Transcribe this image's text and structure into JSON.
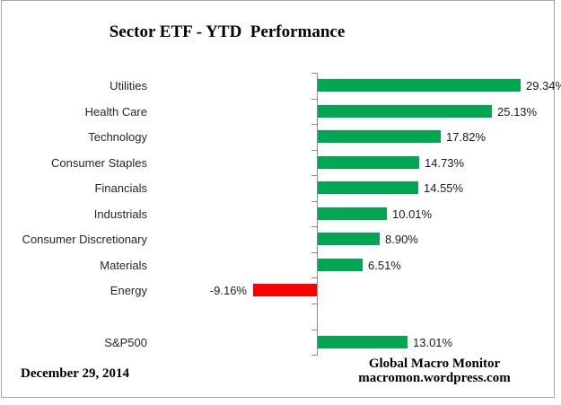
{
  "title": "Sector ETF - YTD  Performance",
  "date_label": "December 29, 2014",
  "footer": {
    "line1": "Global Macro Monitor",
    "line2": "macromon.wordpress.com"
  },
  "chart_data": {
    "type": "bar",
    "orientation": "horizontal",
    "title": "Sector ETF - YTD  Performance",
    "categories": [
      "Utilities",
      "Health Care",
      "Technology",
      "Consumer Staples",
      "Financials",
      "Industrials",
      "Consumer Discretionary",
      "Materials",
      "Energy",
      "",
      "S&P500"
    ],
    "values": [
      29.34,
      25.13,
      17.82,
      14.73,
      14.55,
      10.01,
      8.9,
      6.51,
      -9.16,
      null,
      13.01
    ],
    "value_labels": [
      "29.34%",
      "25.13%",
      "17.82%",
      "14.73%",
      "14.55%",
      "10.01%",
      "8.90%",
      "6.51%",
      "-9.16%",
      "",
      "13.01%"
    ],
    "unit": "%",
    "baseline": 0,
    "grid": false,
    "legend": false,
    "colors": {
      "positive_bar": "#00a651",
      "negative_bar": "#ff0000",
      "axis_line": "#8c8c8c",
      "frame_border": "#a6a6a6"
    }
  }
}
